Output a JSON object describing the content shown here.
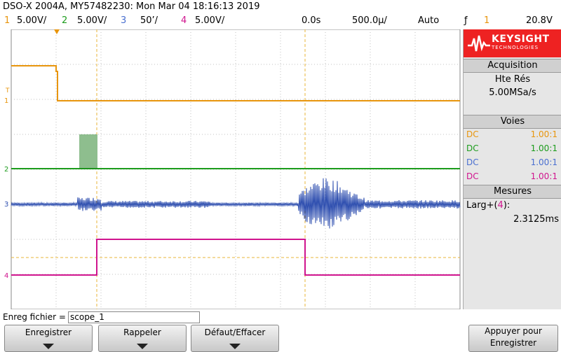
{
  "header": {
    "title": "DSO-X 2004A, MY57482230: Mon Mar 04 18:16:13 2019"
  },
  "channels_bar": {
    "ch1_num": "1",
    "ch1_scale": "5.00V/",
    "ch2_num": "2",
    "ch2_scale": "5.00V/",
    "ch3_num": "3",
    "ch3_scale": "50&#8217;/",
    "ch4_num": "4",
    "ch4_scale": "5.00V/",
    "delay": "0.0s",
    "timebase": "500.0µ/",
    "trigger_mode": "Auto",
    "trigger_channel": "1",
    "trigger_level": "20.8V"
  },
  "colors": {
    "ch1": "#e8950c",
    "ch2": "#1c9c1c",
    "ch3": "#3050b0",
    "ch4": "#d0148e",
    "brand": "#e22222"
  },
  "side": {
    "brand": "KEYSIGHT",
    "brand_sub": "TECHNOLOGIES",
    "acq_title": "Acquisition",
    "acq_mode": "Hte Rés",
    "acq_rate": "5.00MSa/s",
    "voies_title": "Voies",
    "voies": [
      {
        "coupling": "DC",
        "ratio": "1.00:1"
      },
      {
        "coupling": "DC",
        "ratio": "1.00:1"
      },
      {
        "coupling": "DC",
        "ratio": "1.00:1"
      },
      {
        "coupling": "DC",
        "ratio": "1.00:1"
      }
    ],
    "mesures_title": "Mesures",
    "measure_label": "Larg+(4):",
    "measure_value": "2.3125ms"
  },
  "file": {
    "label": "Enreg fichier =",
    "value": "scope_1"
  },
  "softkeys": {
    "save": "Enregistrer",
    "recall": "Rappeler",
    "default": "Défaut/Effacer",
    "press_save": "Appuyer pour Enregistrer"
  },
  "markers": {
    "ch1": "1",
    "ch2": "2",
    "ch3": "3",
    "ch4": "4"
  }
}
